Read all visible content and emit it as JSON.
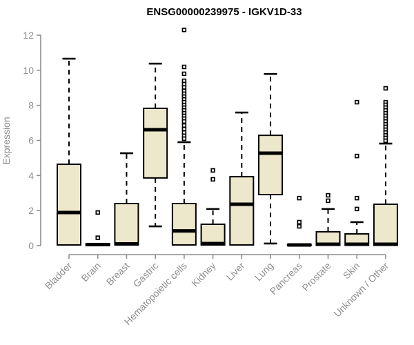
{
  "chart_data": {
    "type": "boxplot",
    "title": "ENSG00000239975 - IGKV1D-33",
    "ylabel": "Expression",
    "xlabel": "",
    "ylim": [
      0,
      12
    ],
    "yticks": [
      0,
      2,
      4,
      6,
      8,
      10,
      12
    ],
    "grid": false,
    "legend": "none",
    "box_fill": "#EDE7CC",
    "box_stroke": "#000000",
    "median_color": "#000000",
    "whisker_color": "#000000",
    "outlier_color": "#000000",
    "axis_color": "#8e8e8e",
    "title_color": "#000000",
    "categories": [
      "Bladder",
      "Brain",
      "Breast",
      "Gastric",
      "Hematopoietic cells",
      "Kidney",
      "Liver",
      "Lung",
      "Pancreas",
      "Prostate",
      "Skin",
      "Unknown / Other"
    ],
    "boxes": [
      {
        "label": "Bladder",
        "q1": 0.04,
        "median": 1.89,
        "q3": 4.64,
        "whisker_low": 0.04,
        "whisker_high": 10.66,
        "outliers": []
      },
      {
        "label": "Brain",
        "q1": 0.0,
        "median": 0.06,
        "q3": 0.12,
        "whisker_low": 0.0,
        "whisker_high": 0.12,
        "outliers": [
          1.89,
          0.45
        ]
      },
      {
        "label": "Breast",
        "q1": 0.04,
        "median": 0.1,
        "q3": 2.4,
        "whisker_low": 0.04,
        "whisker_high": 5.27,
        "outliers": []
      },
      {
        "label": "Gastric",
        "q1": 3.86,
        "median": 6.61,
        "q3": 7.83,
        "whisker_low": 1.1,
        "whisker_high": 10.38,
        "outliers": []
      },
      {
        "label": "Hematopoietic cells",
        "q1": 0.04,
        "median": 0.84,
        "q3": 2.4,
        "whisker_low": 0.04,
        "whisker_high": 5.9,
        "outliers": [
          12.3,
          10.19,
          9.8,
          9.4,
          9.21,
          9.02,
          8.83,
          8.66,
          8.5,
          8.34,
          8.18,
          8.02,
          7.87,
          7.71,
          7.55,
          7.4,
          7.24,
          7.08,
          6.85,
          6.65,
          6.45,
          6.26,
          6.1
        ]
      },
      {
        "label": "Kidney",
        "q1": 0.04,
        "median": 0.12,
        "q3": 1.22,
        "whisker_low": 0.04,
        "whisker_high": 2.09,
        "outliers": [
          4.29,
          3.78
        ]
      },
      {
        "label": "Liver",
        "q1": 0.04,
        "median": 2.36,
        "q3": 3.93,
        "whisker_low": 0.04,
        "whisker_high": 7.59,
        "outliers": []
      },
      {
        "label": "Lung",
        "q1": 2.91,
        "median": 5.27,
        "q3": 6.29,
        "whisker_low": 0.12,
        "whisker_high": 9.79,
        "outliers": []
      },
      {
        "label": "Pancreas",
        "q1": 0.0,
        "median": 0.04,
        "q3": 0.08,
        "whisker_low": 0.0,
        "whisker_high": 0.08,
        "outliers": [
          2.71,
          1.34,
          1.1
        ]
      },
      {
        "label": "Prostate",
        "q1": 0.02,
        "median": 0.08,
        "q3": 0.79,
        "whisker_low": 0.02,
        "whisker_high": 2.09,
        "outliers": [
          2.87,
          2.56
        ]
      },
      {
        "label": "Skin",
        "q1": 0.02,
        "median": 0.08,
        "q3": 0.67,
        "whisker_low": 0.02,
        "whisker_high": 1.34,
        "outliers": [
          8.18,
          5.11,
          2.71,
          2.09
        ]
      },
      {
        "label": "Unknown / Other",
        "q1": 0.02,
        "median": 0.08,
        "q3": 2.36,
        "whisker_low": 0.02,
        "whisker_high": 5.82,
        "outliers": [
          8.97,
          8.18,
          8.03,
          7.87,
          7.71,
          7.55,
          7.4,
          7.24,
          7.08,
          6.92,
          6.77,
          6.61,
          6.45,
          6.29,
          6.14,
          5.98
        ]
      }
    ]
  }
}
